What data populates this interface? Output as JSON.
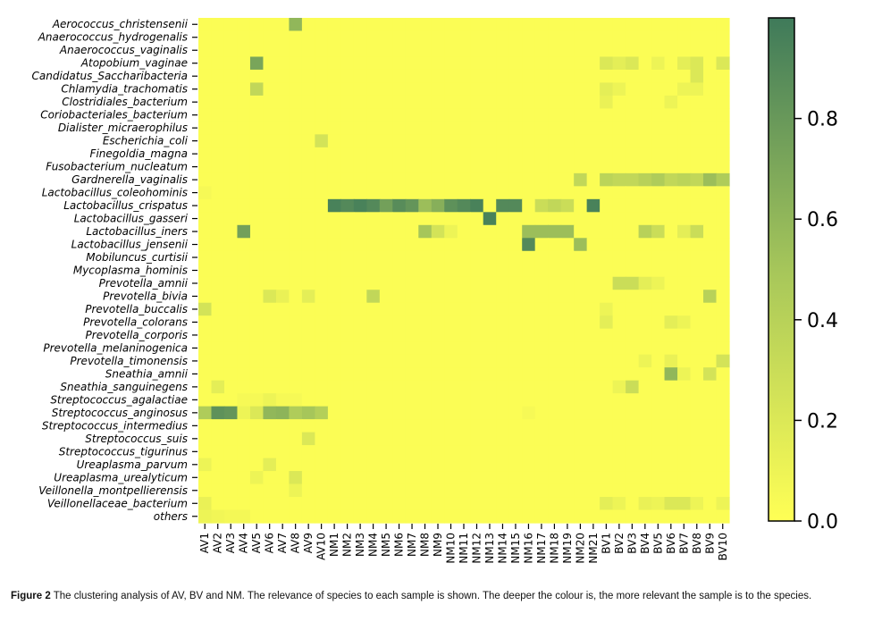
{
  "chart_data": {
    "type": "heatmap",
    "title": "",
    "xlabel": "",
    "ylabel": "",
    "colormap": {
      "low": "#ffff55",
      "mid": "#a6c65a",
      "high": "#3f7a5a"
    },
    "colorbar": {
      "range": [
        0,
        1
      ],
      "ticks": [
        0.0,
        0.2,
        0.4,
        0.6,
        0.8
      ],
      "tick_labels": [
        "0.0",
        "0.2",
        "0.4",
        "0.6",
        "0.8"
      ]
    },
    "rows": [
      "Aerococcus_christensenii",
      "Anaerococcus_hydrogenalis",
      "Anaerococcus_vaginalis",
      "Atopobium_vaginae",
      "Candidatus_Saccharibacteria",
      "Chlamydia_trachomatis",
      "Clostridiales_bacterium",
      "Coriobacteriales_bacterium",
      "Dialister_micraerophilus",
      "Escherichia_coli",
      "Finegoldia_magna",
      "Fusobacterium_nucleatum",
      "Gardnerella_vaginalis",
      "Lactobacillus_coleohominis",
      "Lactobacillus_crispatus",
      "Lactobacillus_gasseri",
      "Lactobacillus_iners",
      "Lactobacillus_jensenii",
      "Mobiluncus_curtisii",
      "Mycoplasma_hominis",
      "Prevotella_amnii",
      "Prevotella_bivia",
      "Prevotella_buccalis",
      "Prevotella_colorans",
      "Prevotella_corporis",
      "Prevotella_melaninogenica",
      "Prevotella_timonensis",
      "Sneathia_amnii",
      "Sneathia_sanguinegens",
      "Streptococcus_agalactiae",
      "Streptococcus_anginosus",
      "Streptococcus_intermedius",
      "Streptococcus_suis",
      "Streptococcus_tigurinus",
      "Ureaplasma_parvum",
      "Ureaplasma_urealyticum",
      "Veillonella_montpellierensis",
      "Veillonellaceae_bacterium",
      "others"
    ],
    "columns": [
      "AV1",
      "AV2",
      "AV3",
      "AV4",
      "AV5",
      "AV6",
      "AV7",
      "AV8",
      "AV9",
      "AV10",
      "NM1",
      "NM2",
      "NM3",
      "NM4",
      "NM5",
      "NM6",
      "NM7",
      "NM8",
      "NM9",
      "NM10",
      "NM11",
      "NM12",
      "NM13",
      "NM14",
      "NM15",
      "NM16",
      "NM17",
      "NM18",
      "NM19",
      "NM20",
      "NM21",
      "BV1",
      "BV2",
      "BV3",
      "BV4",
      "BV5",
      "BV6",
      "BV7",
      "BV8",
      "BV9",
      "BV10"
    ],
    "default_value": 0.02,
    "cells": [
      [
        0,
        7,
        0.6
      ],
      [
        3,
        4,
        0.72
      ],
      [
        3,
        31,
        0.2
      ],
      [
        3,
        32,
        0.15
      ],
      [
        3,
        33,
        0.2
      ],
      [
        3,
        35,
        0.1
      ],
      [
        3,
        37,
        0.15
      ],
      [
        3,
        38,
        0.2
      ],
      [
        3,
        40,
        0.2
      ],
      [
        4,
        38,
        0.2
      ],
      [
        5,
        4,
        0.35
      ],
      [
        5,
        31,
        0.15
      ],
      [
        5,
        32,
        0.1
      ],
      [
        5,
        37,
        0.1
      ],
      [
        5,
        38,
        0.1
      ],
      [
        6,
        31,
        0.12
      ],
      [
        6,
        36,
        0.1
      ],
      [
        9,
        9,
        0.25
      ],
      [
        12,
        29,
        0.35
      ],
      [
        12,
        31,
        0.38
      ],
      [
        12,
        32,
        0.35
      ],
      [
        12,
        33,
        0.35
      ],
      [
        12,
        34,
        0.4
      ],
      [
        12,
        35,
        0.45
      ],
      [
        12,
        36,
        0.35
      ],
      [
        12,
        37,
        0.38
      ],
      [
        12,
        38,
        0.35
      ],
      [
        12,
        39,
        0.55
      ],
      [
        12,
        40,
        0.45
      ],
      [
        13,
        0,
        0.05
      ],
      [
        14,
        10,
        0.95
      ],
      [
        14,
        11,
        0.9
      ],
      [
        14,
        12,
        0.95
      ],
      [
        14,
        13,
        0.9
      ],
      [
        14,
        14,
        0.75
      ],
      [
        14,
        15,
        0.88
      ],
      [
        14,
        16,
        0.82
      ],
      [
        14,
        17,
        0.55
      ],
      [
        14,
        18,
        0.65
      ],
      [
        14,
        19,
        0.85
      ],
      [
        14,
        20,
        0.9
      ],
      [
        14,
        21,
        0.95
      ],
      [
        14,
        23,
        0.9
      ],
      [
        14,
        24,
        0.9
      ],
      [
        14,
        26,
        0.3
      ],
      [
        14,
        27,
        0.35
      ],
      [
        14,
        28,
        0.3
      ],
      [
        14,
        30,
        0.95
      ],
      [
        15,
        22,
        0.95
      ],
      [
        16,
        3,
        0.75
      ],
      [
        16,
        17,
        0.5
      ],
      [
        16,
        18,
        0.25
      ],
      [
        16,
        19,
        0.1
      ],
      [
        16,
        25,
        0.55
      ],
      [
        16,
        26,
        0.55
      ],
      [
        16,
        27,
        0.55
      ],
      [
        16,
        28,
        0.55
      ],
      [
        16,
        34,
        0.4
      ],
      [
        16,
        35,
        0.3
      ],
      [
        16,
        37,
        0.15
      ],
      [
        16,
        38,
        0.3
      ],
      [
        17,
        25,
        0.9
      ],
      [
        17,
        29,
        0.55
      ],
      [
        20,
        32,
        0.3
      ],
      [
        20,
        33,
        0.3
      ],
      [
        20,
        34,
        0.15
      ],
      [
        20,
        35,
        0.1
      ],
      [
        21,
        5,
        0.2
      ],
      [
        21,
        6,
        0.12
      ],
      [
        21,
        8,
        0.15
      ],
      [
        21,
        13,
        0.35
      ],
      [
        21,
        39,
        0.4
      ],
      [
        22,
        0,
        0.25
      ],
      [
        22,
        31,
        0.1
      ],
      [
        23,
        31,
        0.15
      ],
      [
        23,
        36,
        0.15
      ],
      [
        23,
        37,
        0.1
      ],
      [
        26,
        34,
        0.1
      ],
      [
        26,
        36,
        0.12
      ],
      [
        26,
        40,
        0.25
      ],
      [
        27,
        36,
        0.6
      ],
      [
        27,
        37,
        0.1
      ],
      [
        27,
        39,
        0.25
      ],
      [
        28,
        1,
        0.15
      ],
      [
        28,
        33,
        0.3
      ],
      [
        28,
        32,
        0.1
      ],
      [
        29,
        3,
        0.05
      ],
      [
        29,
        4,
        0.05
      ],
      [
        29,
        5,
        0.1
      ],
      [
        29,
        6,
        0.05
      ],
      [
        29,
        7,
        0.05
      ],
      [
        30,
        0,
        0.45
      ],
      [
        30,
        1,
        0.85
      ],
      [
        30,
        2,
        0.82
      ],
      [
        30,
        3,
        0.1
      ],
      [
        30,
        4,
        0.2
      ],
      [
        30,
        5,
        0.6
      ],
      [
        30,
        6,
        0.62
      ],
      [
        30,
        7,
        0.45
      ],
      [
        30,
        8,
        0.5
      ],
      [
        30,
        9,
        0.42
      ],
      [
        30,
        25,
        0.05
      ],
      [
        32,
        8,
        0.2
      ],
      [
        34,
        0,
        0.1
      ],
      [
        34,
        5,
        0.15
      ],
      [
        35,
        4,
        0.1
      ],
      [
        35,
        7,
        0.2
      ],
      [
        36,
        7,
        0.1
      ],
      [
        37,
        0,
        0.12
      ],
      [
        37,
        31,
        0.15
      ],
      [
        37,
        32,
        0.1
      ],
      [
        37,
        34,
        0.12
      ],
      [
        37,
        35,
        0.1
      ],
      [
        37,
        36,
        0.2
      ],
      [
        37,
        37,
        0.2
      ],
      [
        37,
        38,
        0.1
      ],
      [
        37,
        40,
        0.1
      ],
      [
        38,
        0,
        0.1
      ],
      [
        38,
        1,
        0.08
      ],
      [
        38,
        2,
        0.06
      ],
      [
        38,
        3,
        0.06
      ]
    ]
  },
  "caption": {
    "prefix": "Figure 2",
    "text": "The clustering analysis of AV, BV and NM. The relevance of species to each sample is shown. The deeper the colour is, the more relevant the sample is to the species."
  }
}
